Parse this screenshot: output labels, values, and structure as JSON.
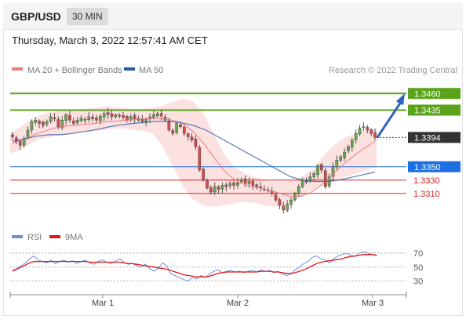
{
  "header": {
    "symbol": "GBP/USD",
    "timeframe": "30 MIN"
  },
  "datetime": "Thursday, March 3, 2022 12:57:41 AM CET",
  "credit": "Research © 2022 Trading Central",
  "legend": [
    {
      "name": "MA 20 + Bollinger Bands",
      "color": "#f07a7a"
    },
    {
      "name": "MA 50",
      "color": "#2c5aa0"
    }
  ],
  "rsi_legend": [
    {
      "name": "RSI",
      "color": "#6e8fd8"
    },
    {
      "name": "9MA",
      "color": "#e01818"
    }
  ],
  "chart_data": [
    {
      "type": "candlestick",
      "title": "GBP/USD",
      "x_tick_labels": [
        "Mar 1",
        "Mar 2",
        "Mar 3"
      ],
      "y_range": [
        1.3265,
        1.3485
      ],
      "levels": [
        {
          "value": 1.346,
          "label": "1.3460",
          "color": "#5aa31a",
          "style": "green-box"
        },
        {
          "value": 1.3435,
          "label": "1.3435",
          "color": "#5aa31a",
          "style": "green-box"
        },
        {
          "value": 1.3394,
          "label": "1.3394",
          "color": "#333333",
          "style": "dark-box"
        },
        {
          "value": 1.335,
          "label": "1.3350",
          "color": "#1e6fe0",
          "style": "blue-box"
        },
        {
          "value": 1.333,
          "label": "1.3330",
          "color": "#e02020",
          "style": "red-text"
        },
        {
          "value": 1.331,
          "label": "1.3310",
          "color": "#e02020",
          "style": "red-text"
        }
      ],
      "close_path": [
        1.3395,
        1.3388,
        1.3382,
        1.3392,
        1.3405,
        1.3418,
        1.342,
        1.3415,
        1.3412,
        1.3418,
        1.3425,
        1.3422,
        1.341,
        1.342,
        1.3428,
        1.342,
        1.3415,
        1.342,
        1.3423,
        1.342,
        1.3425,
        1.3422,
        1.342,
        1.3426,
        1.343,
        1.3428,
        1.3425,
        1.3428,
        1.3426,
        1.3424,
        1.342,
        1.3425,
        1.3422,
        1.342,
        1.3418,
        1.3421,
        1.3425,
        1.3428,
        1.343,
        1.3426,
        1.342,
        1.3405,
        1.34,
        1.3415,
        1.341,
        1.34,
        1.3395,
        1.339,
        1.338,
        1.3345,
        1.333,
        1.3318,
        1.3312,
        1.332,
        1.3316,
        1.3322,
        1.332,
        1.3325,
        1.3322,
        1.3326,
        1.333,
        1.3325,
        1.3328,
        1.3322,
        1.332,
        1.3318,
        1.3316,
        1.3315,
        1.331,
        1.33,
        1.3292,
        1.3285,
        1.3294,
        1.33,
        1.331,
        1.332,
        1.333,
        1.3328,
        1.3335,
        1.334,
        1.3352,
        1.3345,
        1.332,
        1.3335,
        1.335,
        1.336,
        1.3365,
        1.3372,
        1.338,
        1.339,
        1.34,
        1.3408,
        1.341,
        1.3405,
        1.34,
        1.3394
      ],
      "ma20_path": [
        1.3385,
        1.339,
        1.3395,
        1.34,
        1.3404,
        1.3408,
        1.341,
        1.3412,
        1.3413,
        1.3414,
        1.3415,
        1.3417,
        1.3418,
        1.3419,
        1.342,
        1.3421,
        1.3422,
        1.3423,
        1.3422,
        1.3421,
        1.3418,
        1.3412,
        1.3402,
        1.3388,
        1.3372,
        1.3355,
        1.334,
        1.333,
        1.3324,
        1.332,
        1.3318,
        1.3315,
        1.3312,
        1.3308,
        1.3305,
        1.3306,
        1.331,
        1.3318,
        1.3328,
        1.334,
        1.3352,
        1.3362,
        1.3372,
        1.338,
        1.3388
      ],
      "ma50_path": [
        1.3388,
        1.3392,
        1.3396,
        1.3398,
        1.3398,
        1.34,
        1.3403,
        1.3406,
        1.341,
        1.3413,
        1.3415,
        1.3417,
        1.3418,
        1.3418,
        1.3416,
        1.3412,
        1.3405,
        1.3395,
        1.3385,
        1.3375,
        1.3365,
        1.3355,
        1.3345,
        1.3335,
        1.333,
        1.3328,
        1.3328,
        1.333,
        1.3334,
        1.3338,
        1.3342
      ],
      "bb_upper_path": [
        1.34,
        1.341,
        1.342,
        1.3428,
        1.3432,
        1.3434,
        1.3435,
        1.3436,
        1.3438,
        1.344,
        1.344,
        1.3438,
        1.3437,
        1.3437,
        1.3438,
        1.3442,
        1.3448,
        1.3452,
        1.3448,
        1.343,
        1.34,
        1.337,
        1.335,
        1.334,
        1.3335,
        1.333,
        1.3328,
        1.3328,
        1.333,
        1.3338,
        1.335,
        1.337,
        1.3385,
        1.3395,
        1.34,
        1.3405,
        1.3408
      ],
      "bb_lower_path": [
        1.337,
        1.3375,
        1.3385,
        1.3392,
        1.3395,
        1.3398,
        1.34,
        1.3402,
        1.3403,
        1.3405,
        1.3407,
        1.3408,
        1.3406,
        1.3404,
        1.34,
        1.338,
        1.335,
        1.332,
        1.33,
        1.3292,
        1.329,
        1.3292,
        1.3295,
        1.3298,
        1.3296,
        1.3292,
        1.329,
        1.3292,
        1.33,
        1.331,
        1.3318,
        1.3322,
        1.3328,
        1.3335,
        1.334,
        1.3345,
        1.335
      ],
      "forecast": {
        "from": 1.3394,
        "to": 1.346
      }
    },
    {
      "type": "line",
      "title": "RSI",
      "y_ticks": [
        70,
        50,
        30
      ],
      "y_range": [
        15,
        80
      ],
      "series": [
        {
          "name": "RSI",
          "color": "#6e8fd8",
          "values": [
            45,
            48,
            52,
            56,
            62,
            66,
            60,
            58,
            56,
            60,
            55,
            58,
            60,
            57,
            59,
            55,
            58,
            60,
            56,
            54,
            58,
            60,
            57,
            55,
            58,
            62,
            57,
            54,
            55,
            52,
            50,
            54,
            48,
            44,
            48,
            56,
            52,
            40,
            38,
            35,
            32,
            30,
            35,
            33,
            38,
            35,
            40,
            44,
            46,
            42,
            44,
            45,
            43,
            44,
            42,
            44,
            45,
            43,
            46,
            44,
            45,
            42,
            44,
            40,
            38,
            40,
            46,
            50,
            55,
            58,
            64,
            66,
            62,
            60,
            56,
            62,
            66,
            68,
            70,
            67,
            65,
            70,
            72,
            70,
            68,
            66
          ]
        },
        {
          "name": "9MA",
          "color": "#e01818",
          "values": [
            44,
            47,
            50,
            53,
            56,
            58,
            58,
            58,
            58,
            58,
            58,
            58,
            58,
            58,
            58,
            58,
            58,
            58,
            57,
            57,
            57,
            57,
            57,
            57,
            57,
            57,
            56,
            55,
            55,
            54,
            53,
            52,
            51,
            50,
            49,
            48,
            47,
            45,
            43,
            41,
            39,
            38,
            37,
            36,
            36,
            36,
            37,
            39,
            41,
            42,
            43,
            43,
            43,
            43,
            43,
            43,
            43,
            43,
            44,
            44,
            44,
            43,
            43,
            42,
            41,
            41,
            42,
            44,
            46,
            49,
            52,
            55,
            57,
            58,
            59,
            60,
            61,
            62,
            64,
            65,
            66,
            67,
            68,
            68,
            68,
            67
          ]
        }
      ]
    }
  ]
}
